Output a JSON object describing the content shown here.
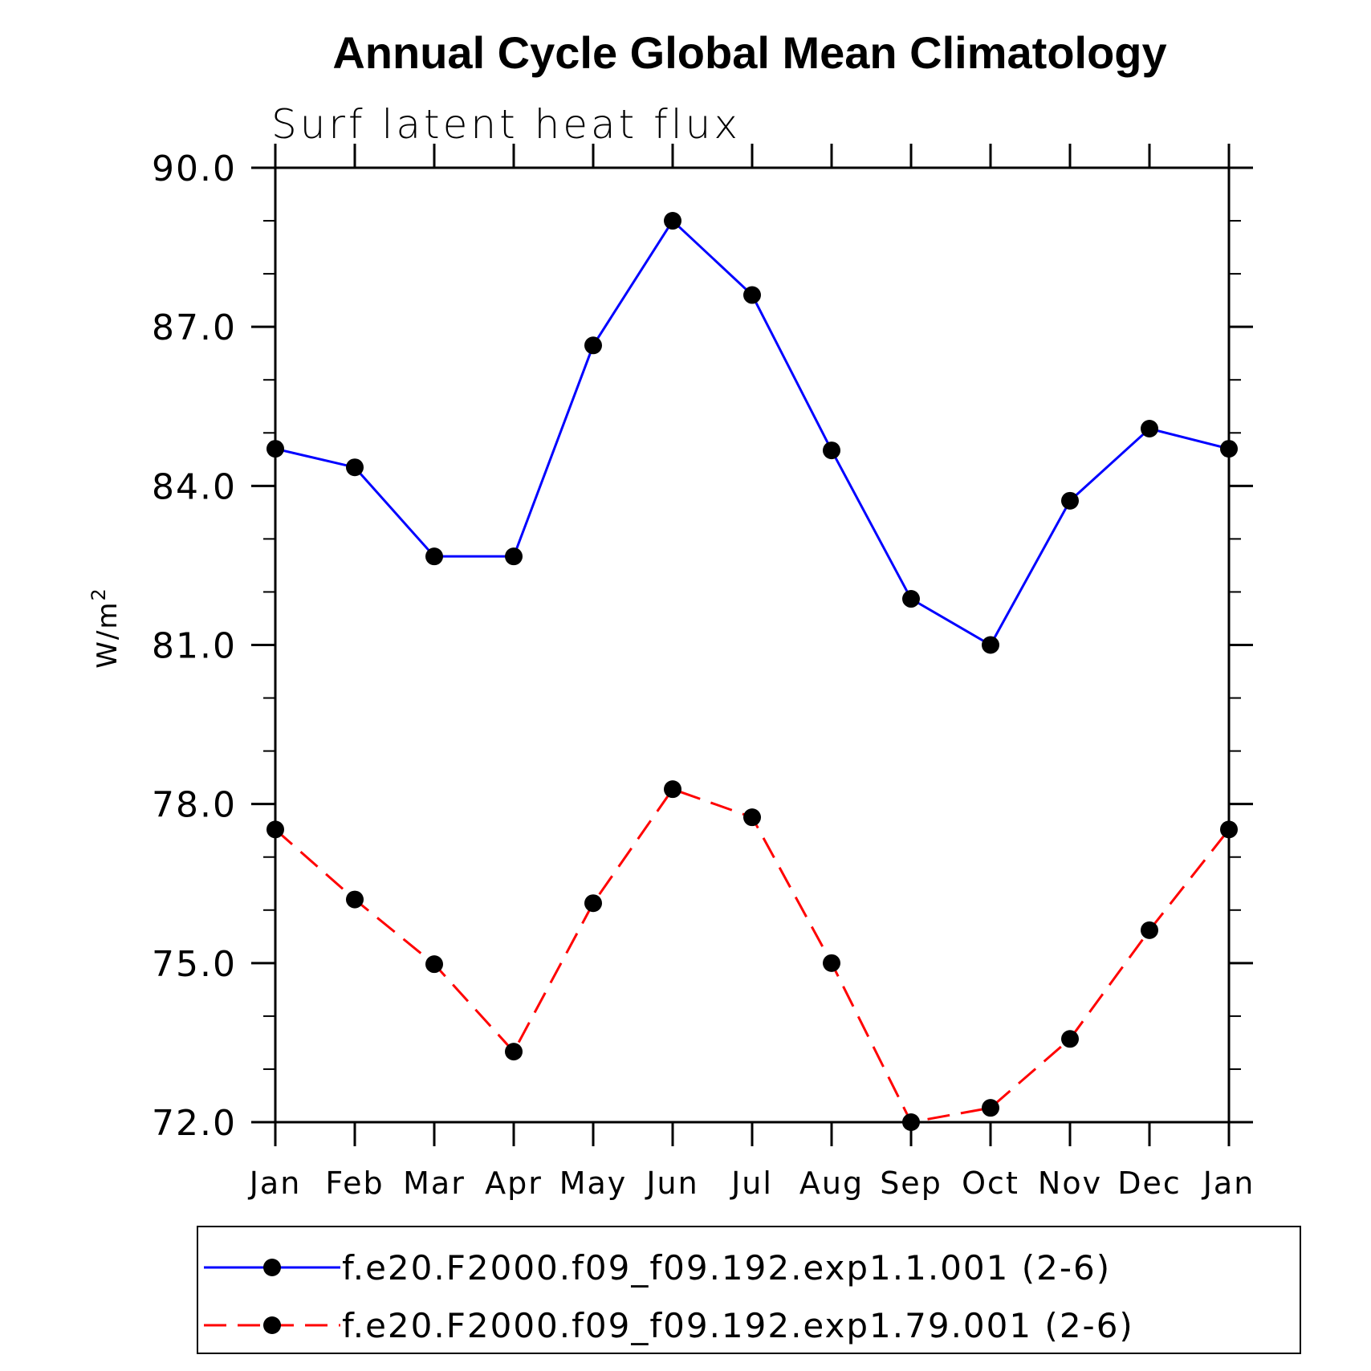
{
  "chart_data": {
    "type": "line",
    "title": "Annual Cycle Global Mean Climatology",
    "subtitle": "Surf latent heat flux",
    "ylabel": "W/m",
    "ylabel_superscript": "2",
    "xlabel": "",
    "categories": [
      "Jan",
      "Feb",
      "Mar",
      "Apr",
      "May",
      "Jun",
      "Jul",
      "Aug",
      "Sep",
      "Oct",
      "Nov",
      "Dec",
      "Jan"
    ],
    "yticks": [
      "90.0",
      "87.0",
      "84.0",
      "81.0",
      "78.0",
      "75.0",
      "72.0"
    ],
    "ylim": [
      72,
      90
    ],
    "grid": false,
    "legend_position": "bottom",
    "series": [
      {
        "name": "f.e20.F2000.f09_f09.192.exp1.1.001 (2-6)",
        "color": "#0000ff",
        "dash": "solid",
        "marker": "filled-circle",
        "values": [
          84.7,
          84.35,
          82.67,
          82.67,
          86.65,
          89.0,
          87.6,
          84.67,
          81.87,
          81.0,
          83.72,
          85.08,
          84.7
        ]
      },
      {
        "name": "f.e20.F2000.f09_f09.192.exp1.79.001 (2-6)",
        "color": "#ff0000",
        "dash": "dashed",
        "marker": "filled-circle",
        "values": [
          77.52,
          76.2,
          74.98,
          73.33,
          76.13,
          78.28,
          77.75,
          75.0,
          72.0,
          72.27,
          73.57,
          75.62,
          77.52
        ]
      }
    ]
  }
}
